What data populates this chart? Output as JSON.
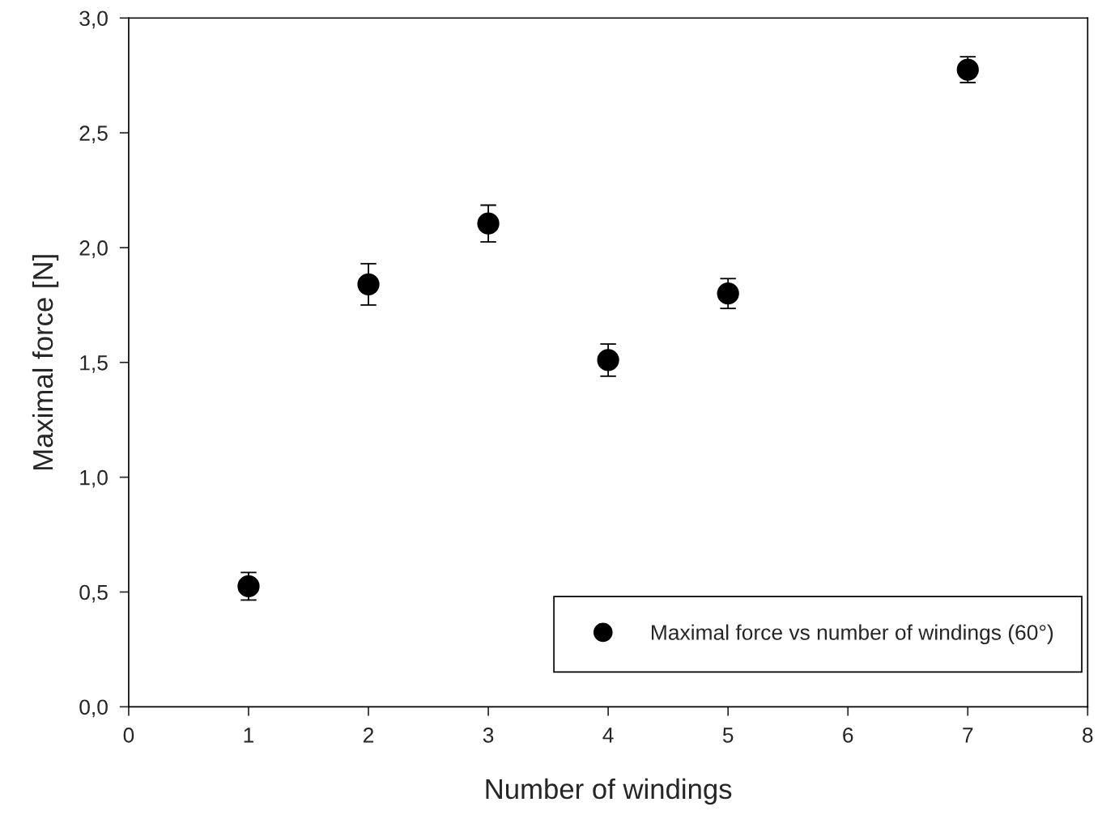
{
  "chart_data": {
    "type": "scatter",
    "xlabel": "Number of windings",
    "ylabel": "Maximal force [N]",
    "x": [
      1,
      2,
      3,
      4,
      5,
      7
    ],
    "series": [
      {
        "name": "Maximal force vs number of windings (60°)",
        "color": "#000000",
        "values": [
          0.525,
          1.84,
          2.105,
          1.51,
          1.8,
          2.775
        ],
        "errors": [
          0.06,
          0.09,
          0.08,
          0.07,
          0.065,
          0.056
        ]
      }
    ],
    "xlim": [
      0,
      8
    ],
    "xticks": [
      0,
      1,
      2,
      3,
      4,
      5,
      6,
      7,
      8
    ],
    "ylim": [
      0,
      3
    ],
    "yticks": [
      {
        "value": 0,
        "label": "0,0"
      },
      {
        "value": 0.5,
        "label": "0,5"
      },
      {
        "value": 1,
        "label": "1,0"
      },
      {
        "value": 1.5,
        "label": "1,5"
      },
      {
        "value": 2,
        "label": "2,0"
      },
      {
        "value": 2.5,
        "label": "2,5"
      },
      {
        "value": 3,
        "label": "3,0"
      }
    ],
    "grid": false,
    "legend": "bottom right",
    "marker": "circle"
  }
}
